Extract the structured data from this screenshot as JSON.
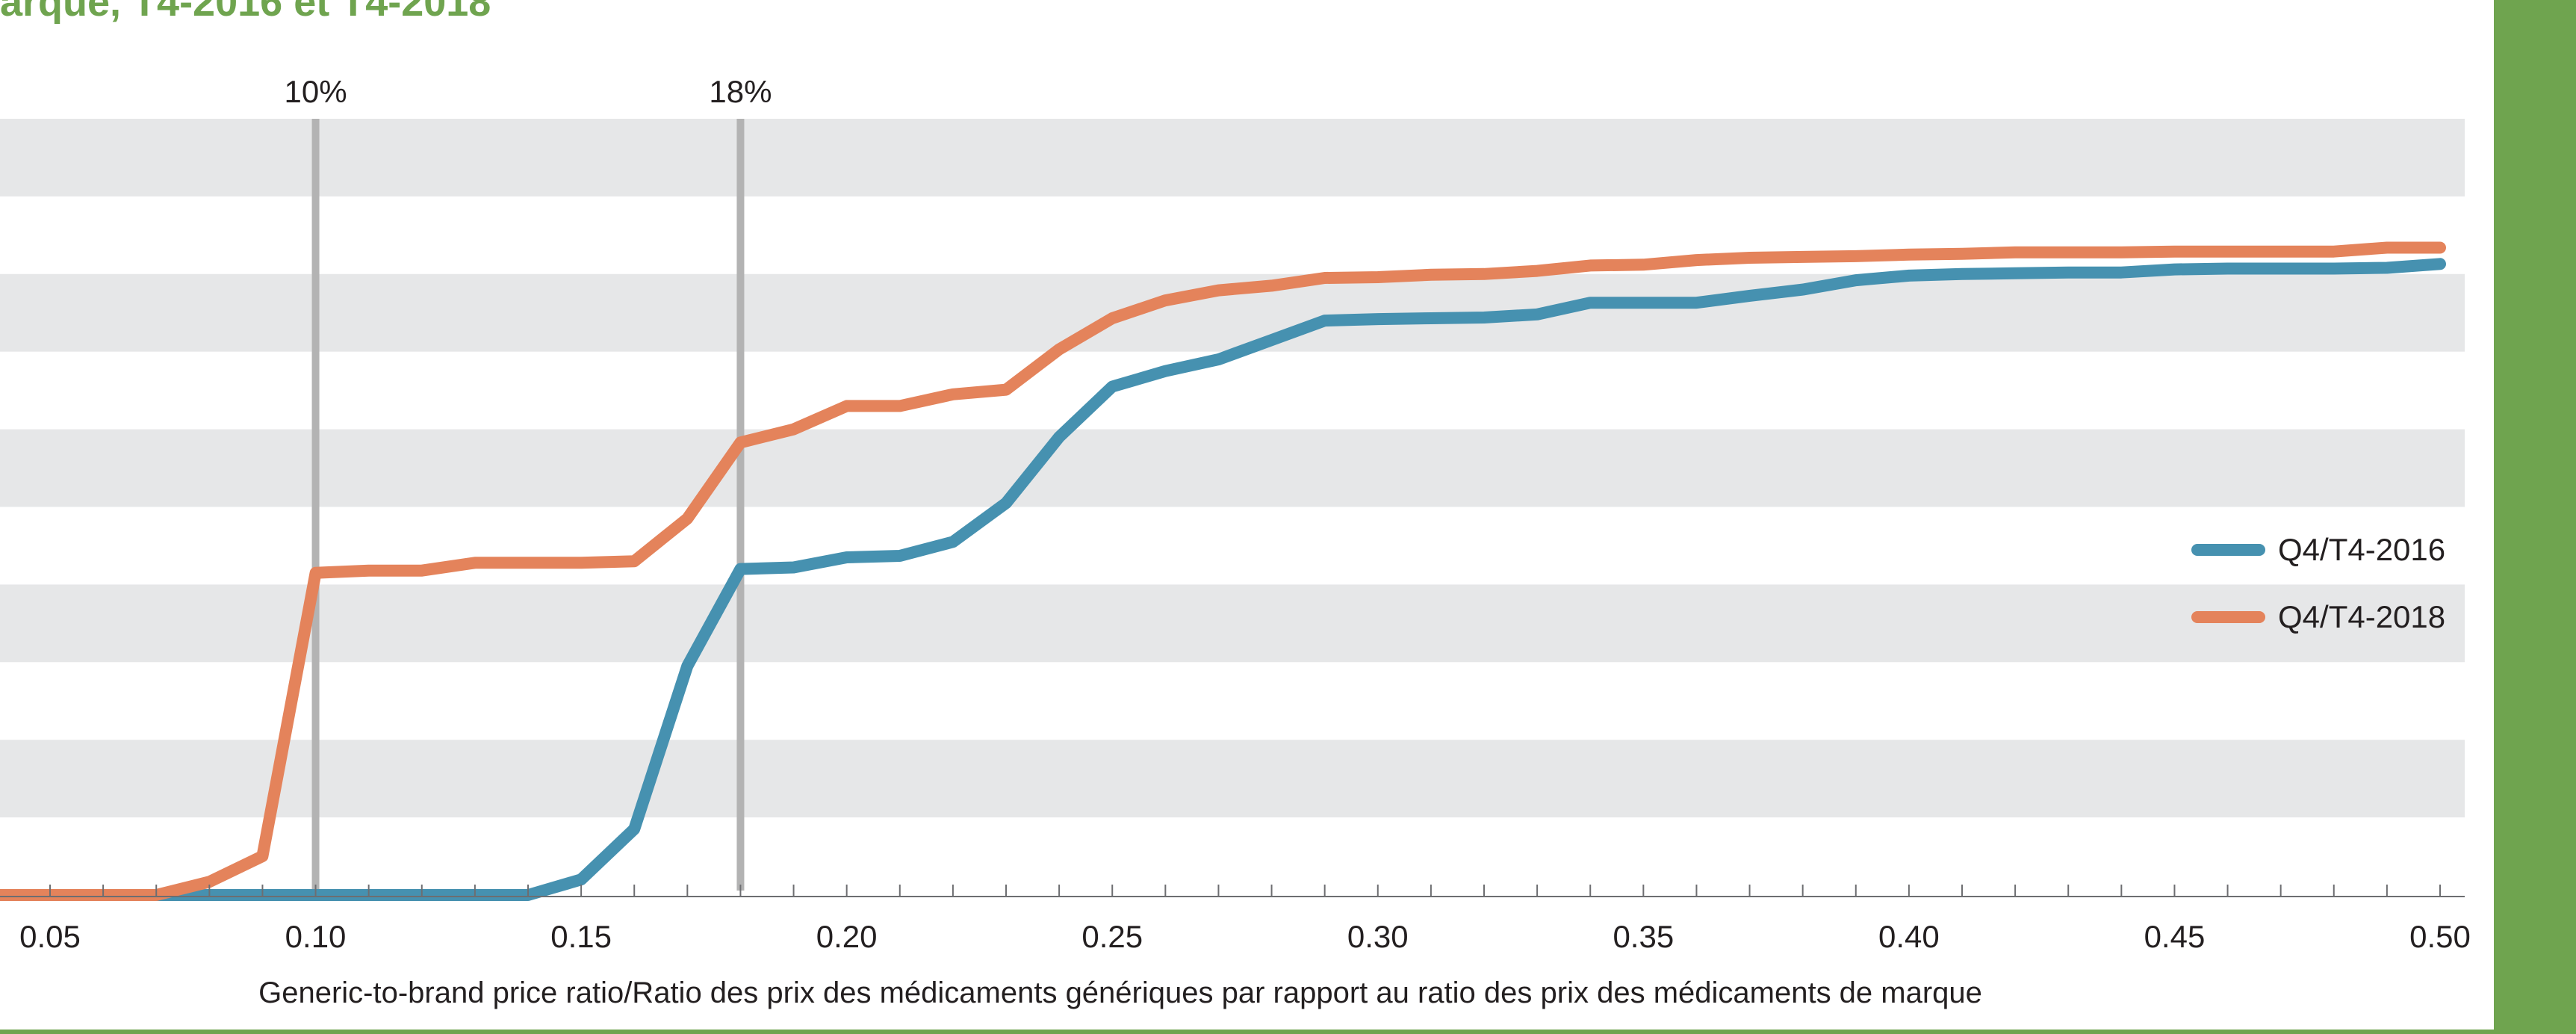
{
  "chart_data": {
    "type": "line",
    "title": "arque, T4-2016 et T4-2018",
    "xlabel": "Generic-to-brand price ratio/Ratio des prix des médicaments génériques par rapport au ratio des prix des médicaments de marque",
    "ylabel": "",
    "xlim": [
      0.0,
      0.5
    ],
    "ylim": [
      0,
      100
    ],
    "y_ticks_labeled": false,
    "grid": "horizontal alternating bands",
    "x_ticks": [
      0.05,
      0.1,
      0.15,
      0.2,
      0.25,
      0.3,
      0.35,
      0.4,
      0.45,
      0.5
    ],
    "x_tick_labels": [
      "0.05",
      "0.10",
      "0.15",
      "0.20",
      "0.25",
      "0.30",
      "0.35",
      "0.40",
      "0.45",
      "0.50"
    ],
    "reference_lines": [
      {
        "x": 0.1,
        "label": "10%"
      },
      {
        "x": 0.18,
        "label": "18%"
      }
    ],
    "legend_position": "right",
    "x": [
      0.0,
      0.07,
      0.08,
      0.09,
      0.1,
      0.11,
      0.12,
      0.13,
      0.14,
      0.15,
      0.16,
      0.17,
      0.18,
      0.19,
      0.2,
      0.21,
      0.22,
      0.23,
      0.24,
      0.25,
      0.26,
      0.27,
      0.28,
      0.29,
      0.3,
      0.31,
      0.32,
      0.33,
      0.34,
      0.35,
      0.36,
      0.37,
      0.38,
      0.39,
      0.4,
      0.41,
      0.42,
      0.43,
      0.44,
      0.45,
      0.46,
      0.47,
      0.48,
      0.49,
      0.5
    ],
    "series": [
      {
        "name": "Q4/T4-2016",
        "color": "#4691b0",
        "values": [
          0,
          0,
          0,
          0,
          0,
          0,
          0,
          0,
          0,
          2,
          8.5,
          29.5,
          42,
          42.2,
          43.5,
          43.7,
          45.5,
          50.5,
          59,
          65.5,
          67.5,
          69,
          71.5,
          74,
          74.2,
          74.3,
          74.4,
          74.8,
          76.3,
          76.3,
          76.3,
          77.2,
          78,
          79.2,
          79.8,
          80,
          80.1,
          80.2,
          80.2,
          80.6,
          80.7,
          80.7,
          80.7,
          80.8,
          81.3
        ]
      },
      {
        "name": "Q4/T4-2018",
        "color": "#e4835b",
        "values": [
          0,
          0,
          1.7,
          5,
          41.5,
          41.8,
          41.8,
          42.8,
          42.8,
          42.8,
          43,
          48.5,
          58.3,
          60,
          63,
          63,
          64.5,
          65.1,
          70.3,
          74.3,
          76.6,
          77.9,
          78.5,
          79.5,
          79.6,
          79.9,
          80,
          80.4,
          81.1,
          81.2,
          81.8,
          82.1,
          82.2,
          82.3,
          82.5,
          82.6,
          82.8,
          82.8,
          82.8,
          82.9,
          82.9,
          82.9,
          82.9,
          83.4,
          83.4
        ]
      }
    ],
    "colors": {
      "title": "#6fa44f",
      "band": "#e6e7e8",
      "reference_line": "#b3b3b3",
      "axis": "#6d6e71",
      "text": "#231f20",
      "frame_accent": "#6fa44f"
    }
  }
}
